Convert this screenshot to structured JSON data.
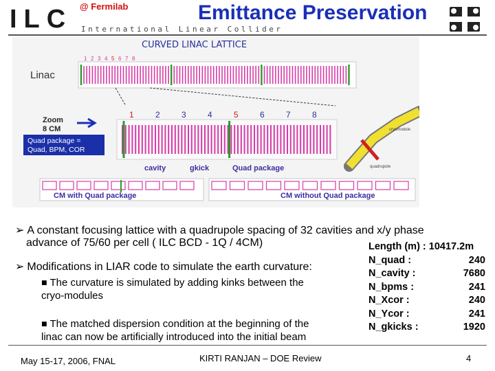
{
  "header": {
    "logo_letters": "ILC",
    "logo_subtitle": "International Linear Collider",
    "fermilab": "@ Fermilab",
    "title": "Emittance Preservation"
  },
  "figure": {
    "title": "CURVED LINAC LATTICE",
    "linac_label": "Linac",
    "zoom_label_1": "Zoom",
    "zoom_label_2": "8 CM",
    "quad_box_1": "Quad package  =",
    "quad_box_2": "Quad, BPM, COR",
    "cell_numbers_small": [
      "1",
      "2",
      "3",
      "4",
      "5",
      "6",
      "7",
      "8"
    ],
    "cell_numbers": [
      "1",
      "2",
      "3",
      "4",
      "5",
      "6",
      "7",
      "8"
    ],
    "cavity_label": "cavity",
    "gkick_label": "gkick",
    "quad_package_label": "Quad package",
    "cryomodule_label": "cryomodule",
    "quadrupole_label": "quadrupole",
    "cm_with_label": "CM with Quad package",
    "cm_without_label": "CM without Quad package",
    "colors": {
      "magenta": "#d63aa8",
      "green": "#2a9a2a",
      "yellow": "#f0e030",
      "red": "#d02020",
      "blue": "#2a2fa0"
    }
  },
  "bullets": {
    "b1_line1": "A constant focusing lattice with a quadrupole spacing of 32 cavities and x/y phase",
    "b1_line2": "advance of 75/60 per cell ( ILC BCD - 1Q / 4CM)",
    "b2": "Modifications in LIAR code to simulate the earth curvature:",
    "s1_line1": "The curvature is simulated by adding kinks between the",
    "s1_line2": "cryo-modules",
    "s2_line1": "The matched dispersion condition at the beginning of the",
    "s2_line2": "linac can now be artificially introduced into the initial beam"
  },
  "stats": {
    "header": "Length (m) : 10417.2m",
    "rows": [
      {
        "key": "N_quad   :",
        "value": "240"
      },
      {
        "key": "N_cavity  :",
        "value": "7680"
      },
      {
        "key": "N_bpms  :",
        "value": "241"
      },
      {
        "key": "N_Xcor   :",
        "value": "240"
      },
      {
        "key": "N_Ycor   :",
        "value": "241"
      },
      {
        "key": "N_gkicks :",
        "value": "1920"
      }
    ]
  },
  "footer": {
    "date": "May 15-17, 2006, FNAL",
    "author": "KIRTI RANJAN – DOE Review",
    "page": "4"
  }
}
